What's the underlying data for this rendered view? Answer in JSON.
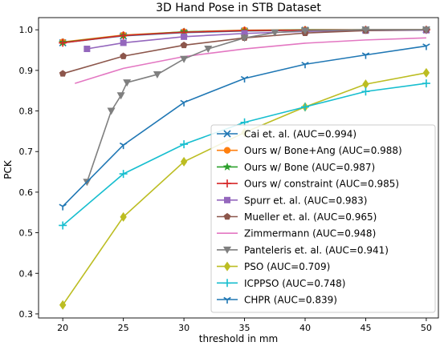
{
  "chart_data": {
    "type": "line",
    "title": "3D Hand Pose in STB Dataset",
    "xlabel": "threshold in mm",
    "ylabel": "PCK",
    "xlim": [
      18,
      51
    ],
    "ylim": [
      0.29,
      1.03
    ],
    "xticks": [
      20,
      25,
      30,
      35,
      40,
      45,
      50
    ],
    "xtick_labels": [
      "20",
      "25",
      "30",
      "35",
      "40",
      "45",
      "50"
    ],
    "yticks": [
      0.3,
      0.4,
      0.5,
      0.6,
      0.7,
      0.8,
      0.9,
      1.0
    ],
    "ytick_labels": [
      "0.3",
      "0.4",
      "0.5",
      "0.6",
      "0.7",
      "0.8",
      "0.9",
      "1.0"
    ],
    "grid": false,
    "legend_position": "lower-right",
    "series": [
      {
        "name": "Cai et. al. (AUC=0.994)",
        "color": "#1f77b4",
        "marker": "x",
        "x": [
          20,
          25,
          30,
          35,
          40,
          45,
          50
        ],
        "y": [
          0.968,
          0.985,
          0.993,
          0.997,
          0.999,
          1.0,
          1.0
        ]
      },
      {
        "name": "Ours w/ Bone+Ang (AUC=0.988)",
        "color": "#ff7f0e",
        "marker": "circle",
        "x": [
          20,
          25,
          30,
          35,
          40,
          45,
          50
        ],
        "y": [
          0.97,
          0.987,
          0.995,
          0.999,
          1.0,
          1.0,
          1.0
        ]
      },
      {
        "name": "Ours w/ Bone (AUC=0.987)",
        "color": "#2ca02c",
        "marker": "star",
        "x": [
          20,
          25,
          30,
          35,
          40,
          45,
          50
        ],
        "y": [
          0.969,
          0.986,
          0.995,
          0.998,
          1.0,
          1.0,
          1.0
        ]
      },
      {
        "name": "Ours w/ constraint (AUC=0.985)",
        "color": "#d62728",
        "marker": "plus",
        "x": [
          20,
          25,
          30,
          35,
          40,
          45,
          50
        ],
        "y": [
          0.968,
          0.986,
          0.994,
          0.998,
          0.999,
          1.0,
          1.0
        ]
      },
      {
        "name": "Spurr et. al. (AUC=0.983)",
        "color": "#9467bd",
        "marker": "square",
        "x": [
          22,
          25,
          30,
          35,
          40,
          45,
          50
        ],
        "y": [
          0.953,
          0.968,
          0.983,
          0.991,
          0.996,
          0.998,
          0.999
        ]
      },
      {
        "name": "Mueller et. al. (AUC=0.965)",
        "color": "#8c564b",
        "marker": "pentagon",
        "x": [
          20,
          25,
          30,
          35,
          40,
          45,
          50
        ],
        "y": [
          0.892,
          0.935,
          0.962,
          0.98,
          0.992,
          0.998,
          1.0
        ]
      },
      {
        "name": "Zimmermann (AUC=0.948)",
        "color": "#e377c2",
        "marker": "none",
        "x": [
          21,
          25,
          30,
          35,
          40,
          45,
          50
        ],
        "y": [
          0.868,
          0.905,
          0.934,
          0.953,
          0.967,
          0.975,
          0.98
        ]
      },
      {
        "name": "Panteleris et. al. (AUC=0.941)",
        "color": "#7f7f7f",
        "marker": "triangle-down",
        "x": [
          22,
          24,
          24.8,
          25.3,
          27.8,
          30,
          32,
          35,
          37.5,
          40,
          45,
          50
        ],
        "y": [
          0.625,
          0.8,
          0.838,
          0.87,
          0.89,
          0.928,
          0.953,
          0.98,
          0.993,
          0.998,
          1.0,
          1.0
        ]
      },
      {
        "name": "PSO (AUC=0.709)",
        "color": "#bcbd22",
        "marker": "diamond",
        "x": [
          20,
          25,
          30,
          35,
          40,
          45,
          50
        ],
        "y": [
          0.322,
          0.539,
          0.675,
          0.747,
          0.81,
          0.866,
          0.894
        ]
      },
      {
        "name": "ICPPSO (AUC=0.748)",
        "color": "#17becf",
        "marker": "plus",
        "x": [
          20,
          25,
          30,
          35,
          40,
          45,
          50
        ],
        "y": [
          0.518,
          0.645,
          0.718,
          0.772,
          0.81,
          0.848,
          0.868
        ]
      },
      {
        "name": "CHPR (AUC=0.839)",
        "color": "#1f77b4",
        "marker": "tri-down",
        "x": [
          20,
          25,
          30,
          35,
          40,
          45,
          50
        ],
        "y": [
          0.565,
          0.716,
          0.821,
          0.88,
          0.915,
          0.938,
          0.96
        ]
      }
    ]
  }
}
